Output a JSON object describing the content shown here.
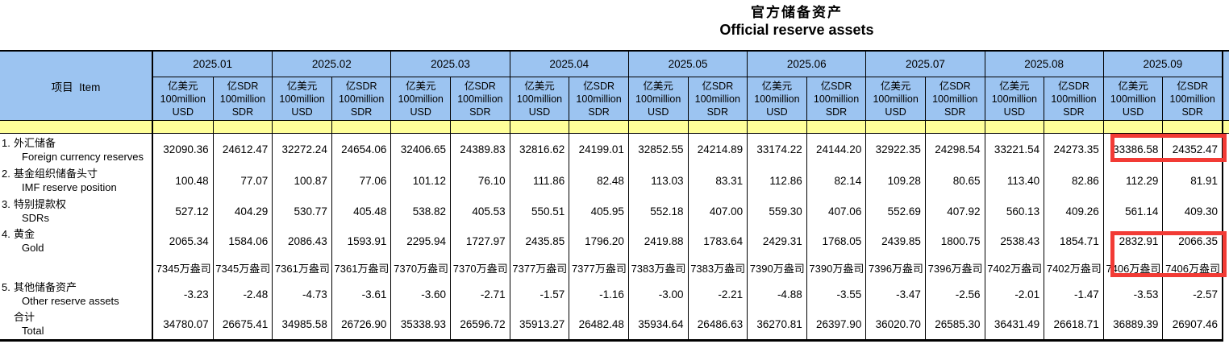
{
  "title": {
    "zh": "官方储备资产",
    "en": "Official reserve assets"
  },
  "colors": {
    "header_blue": "#9CC4F1",
    "band_yellow": "#FFFF99",
    "highlight_red": "#F23B35",
    "border_black": "#000000"
  },
  "table": {
    "item_header": "项目  Item",
    "months": [
      "2025.01",
      "2025.02",
      "2025.03",
      "2025.04",
      "2025.05",
      "2025.06",
      "2025.07",
      "2025.08",
      "2025.09"
    ],
    "unit_usd": [
      "亿美元",
      "100million",
      "USD"
    ],
    "unit_sdr": [
      "亿SDR",
      "100million",
      "SDR"
    ],
    "rows": [
      {
        "num": "1.",
        "zh": "外汇储备",
        "en": "Foreign currency reserves",
        "values": [
          "32090.36",
          "24612.47",
          "32272.24",
          "24654.06",
          "32406.65",
          "24389.83",
          "32816.62",
          "24199.01",
          "32852.55",
          "24214.89",
          "33174.22",
          "24144.20",
          "32922.35",
          "24298.54",
          "33221.54",
          "24273.35",
          "33386.58",
          "24352.47"
        ]
      },
      {
        "num": "2.",
        "zh": "基金组织储备头寸",
        "en": "IMF reserve position",
        "values": [
          "100.48",
          "77.07",
          "100.87",
          "77.06",
          "101.12",
          "76.10",
          "111.86",
          "82.48",
          "113.03",
          "83.31",
          "112.86",
          "82.14",
          "109.28",
          "80.65",
          "113.40",
          "82.86",
          "112.29",
          "81.91"
        ]
      },
      {
        "num": "3.",
        "zh": "特别提款权",
        "en": "SDRs",
        "values": [
          "527.12",
          "404.29",
          "530.77",
          "405.48",
          "538.82",
          "405.53",
          "550.51",
          "405.95",
          "552.18",
          "407.00",
          "559.30",
          "407.06",
          "552.69",
          "407.92",
          "560.13",
          "409.26",
          "561.14",
          "409.30"
        ]
      },
      {
        "num": "4.",
        "zh": "黄金",
        "en": "Gold",
        "values": [
          "2065.34",
          "1584.06",
          "2086.43",
          "1593.91",
          "2295.94",
          "1727.97",
          "2435.85",
          "1796.20",
          "2419.88",
          "1783.64",
          "2429.31",
          "1768.05",
          "2439.85",
          "1800.75",
          "2538.43",
          "1854.71",
          "2832.91",
          "2066.35"
        ]
      },
      {
        "num": "",
        "zh": "",
        "en": "",
        "values": [
          "7345万盎司",
          "7345万盎司",
          "7361万盎司",
          "7361万盎司",
          "7370万盎司",
          "7370万盎司",
          "7377万盎司",
          "7377万盎司",
          "7383万盎司",
          "7383万盎司",
          "7390万盎司",
          "7390万盎司",
          "7396万盎司",
          "7396万盎司",
          "7402万盎司",
          "7402万盎司",
          "7406万盎司",
          "7406万盎司"
        ]
      },
      {
        "num": "5.",
        "zh": "其他储备资产",
        "en": "Other reserve assets",
        "values": [
          "-3.23",
          "-2.48",
          "-4.73",
          "-3.61",
          "-3.60",
          "-2.71",
          "-1.57",
          "-1.16",
          "-3.00",
          "-2.21",
          "-4.88",
          "-3.55",
          "-3.47",
          "-2.56",
          "-2.01",
          "-1.47",
          "-3.53",
          "-2.57"
        ]
      },
      {
        "num": "",
        "zh": "合计",
        "en": "Total",
        "values": [
          "34780.07",
          "26675.41",
          "34985.58",
          "26726.90",
          "35338.93",
          "26596.72",
          "35913.27",
          "26482.48",
          "35934.64",
          "26486.63",
          "36270.81",
          "26397.90",
          "36020.70",
          "26585.30",
          "36431.49",
          "26618.71",
          "36889.39",
          "26907.46"
        ]
      }
    ]
  }
}
